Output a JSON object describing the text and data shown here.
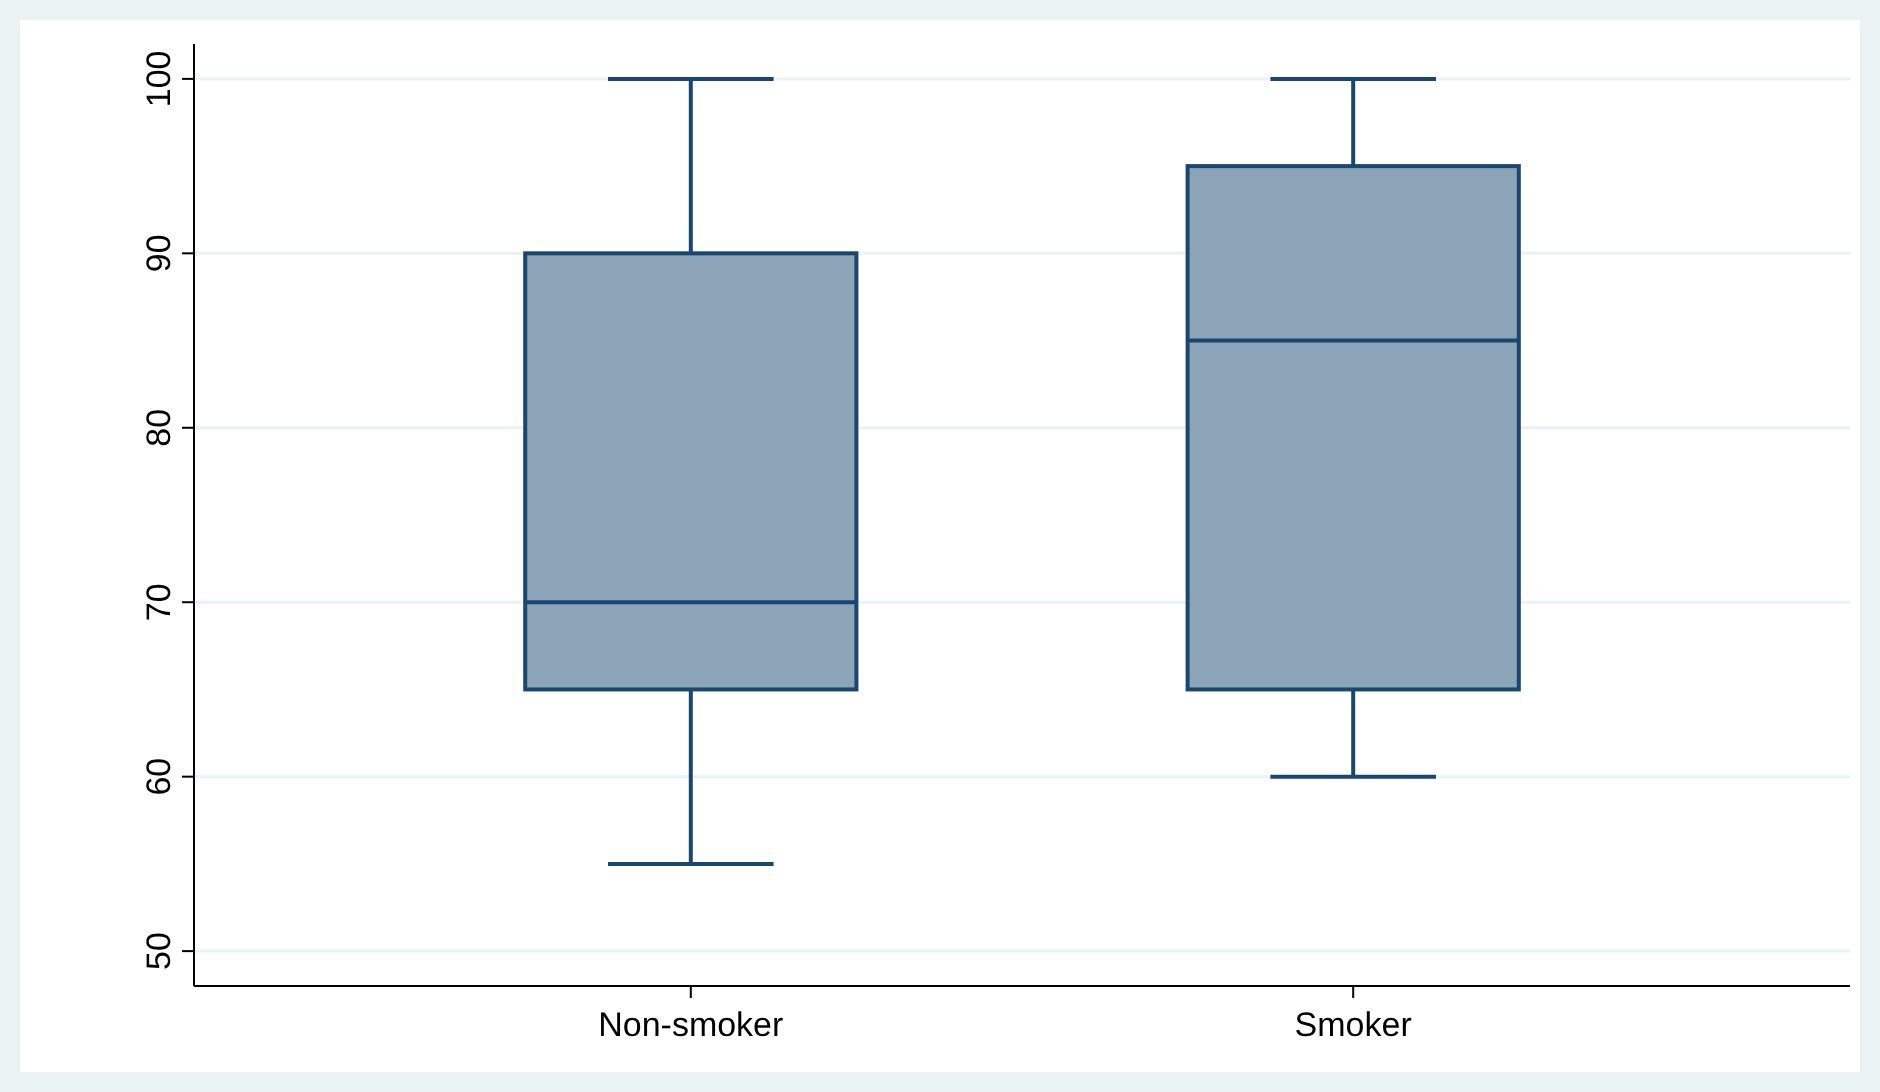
{
  "chart_data": {
    "type": "box",
    "categories": [
      "Non-smoker",
      "Smoker"
    ],
    "boxes": [
      {
        "low": 55,
        "q1": 65,
        "median": 70,
        "q3": 90,
        "high": 100
      },
      {
        "low": 60,
        "q1": 65,
        "median": 85,
        "q3": 95,
        "high": 100
      }
    ],
    "color": "#8ca4b8",
    "ylim": [
      48,
      102
    ],
    "yticks": [
      50,
      60,
      70,
      80,
      90,
      100
    ],
    "grid": "y"
  }
}
